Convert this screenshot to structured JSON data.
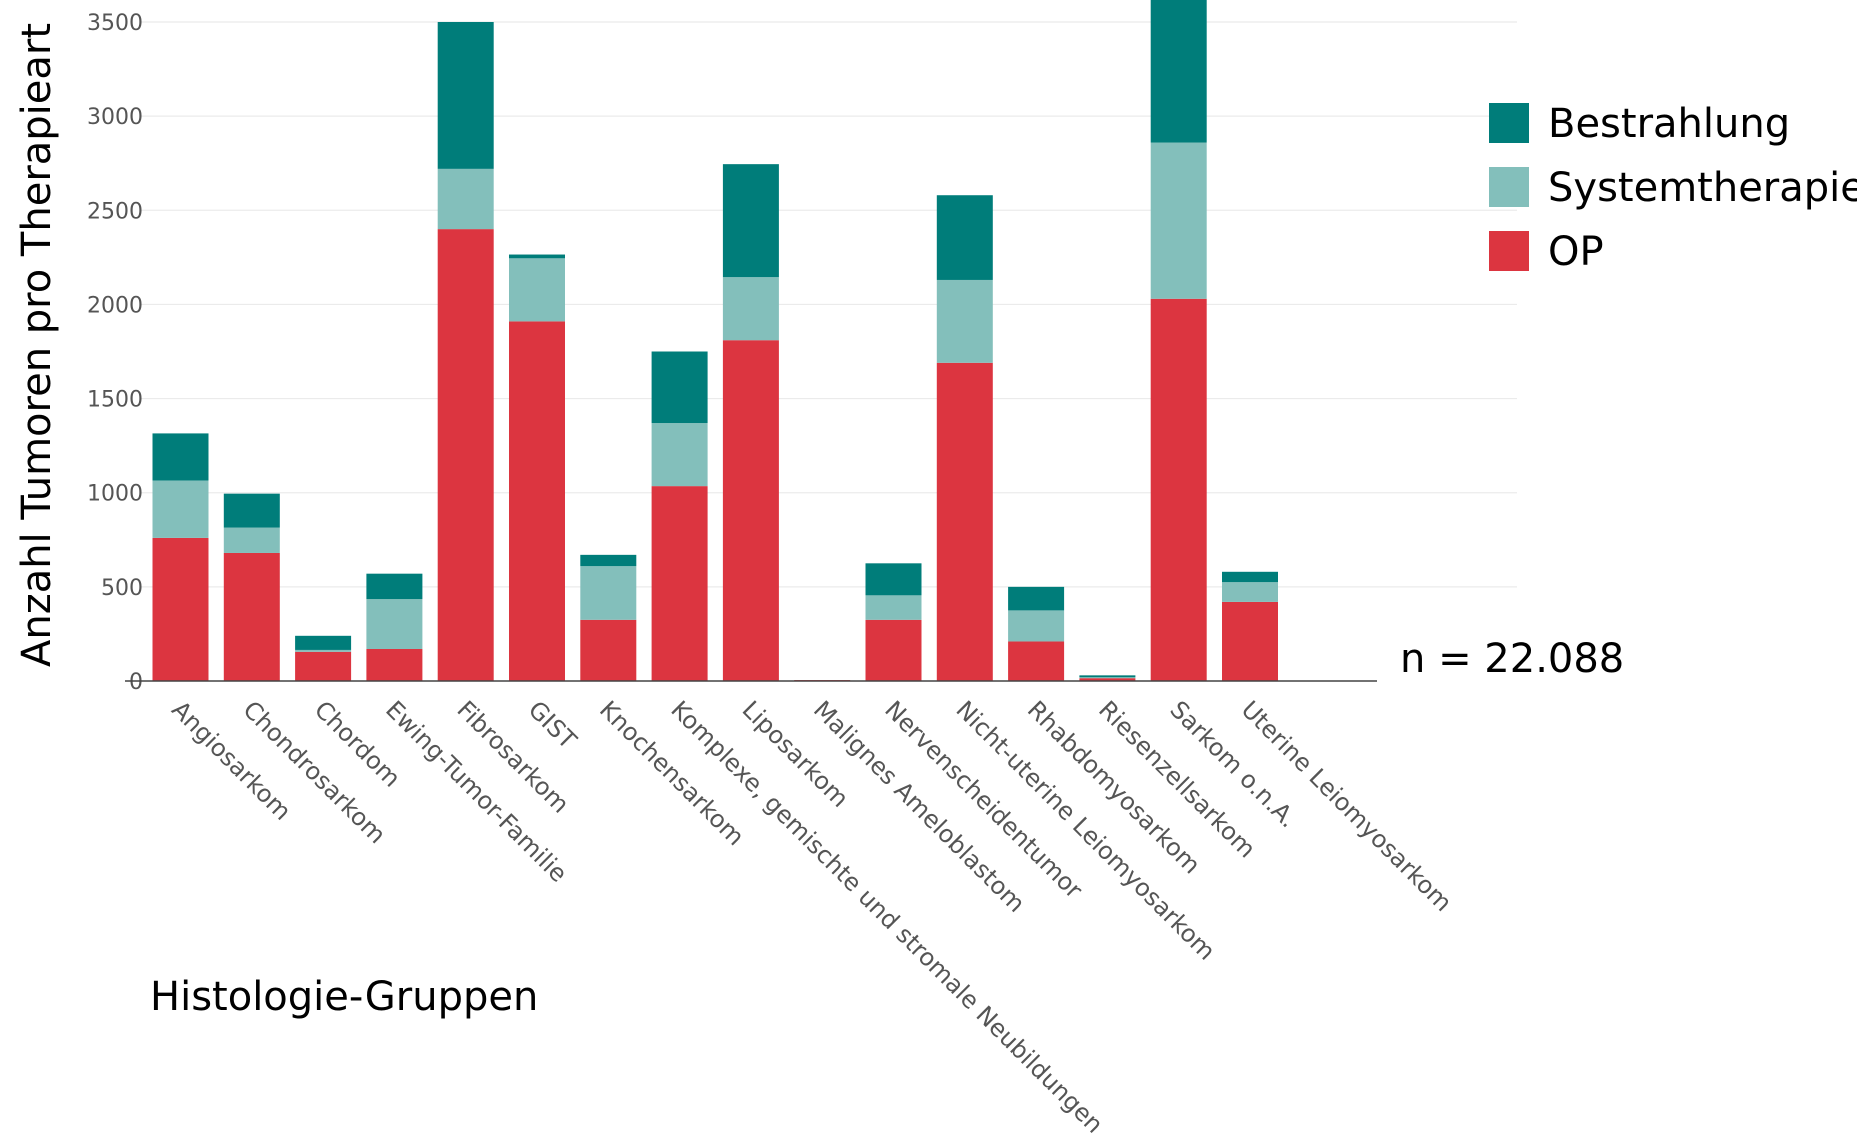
{
  "chart_data": {
    "type": "bar",
    "stacked": true,
    "categories": [
      "Angiosarkom",
      "Chondrosarkom",
      "Chordom",
      "Ewing-Tumor-Familie",
      "Fibrosarkom",
      "GIST",
      "Knochensarkom",
      "Komplexe, gemischte und stromale Neubildungen",
      "Liposarkom",
      "Malignes Ameloblastom",
      "Nervenscheidentumor",
      "Nicht-uterine Leiomyosarkom",
      "Rhabdomyosarkom",
      "Riesenzellsarkom",
      "Sarkom o.n.A.",
      "Uterine Leiomyosarkom"
    ],
    "series": [
      {
        "name": "OP",
        "color": "#dc3540",
        "values": [
          760,
          680,
          155,
          170,
          2400,
          1910,
          325,
          1035,
          1810,
          5,
          325,
          1690,
          210,
          15,
          2030,
          420
        ]
      },
      {
        "name": "Systemtherapie",
        "color": "#83bfbb",
        "values": [
          305,
          135,
          10,
          265,
          320,
          335,
          285,
          335,
          335,
          0,
          130,
          440,
          165,
          5,
          830,
          105
        ]
      },
      {
        "name": "Bestrahlung",
        "color": "#007d7a",
        "values": [
          250,
          180,
          75,
          135,
          780,
          20,
          60,
          380,
          600,
          0,
          170,
          450,
          125,
          10,
          800,
          55
        ]
      }
    ],
    "legend_order": [
      "Bestrahlung",
      "Systemtherapie",
      "OP"
    ],
    "xlabel": "Histologie-Gruppen",
    "ylabel": "Anzahl Tumoren pro Therapieart",
    "ylim": [
      0,
      3500
    ],
    "yticks": [
      0,
      500,
      1000,
      1500,
      2000,
      2500,
      3000,
      3500
    ],
    "grid": true,
    "legend_position": "top-right",
    "annotation": "n = 22.088"
  }
}
